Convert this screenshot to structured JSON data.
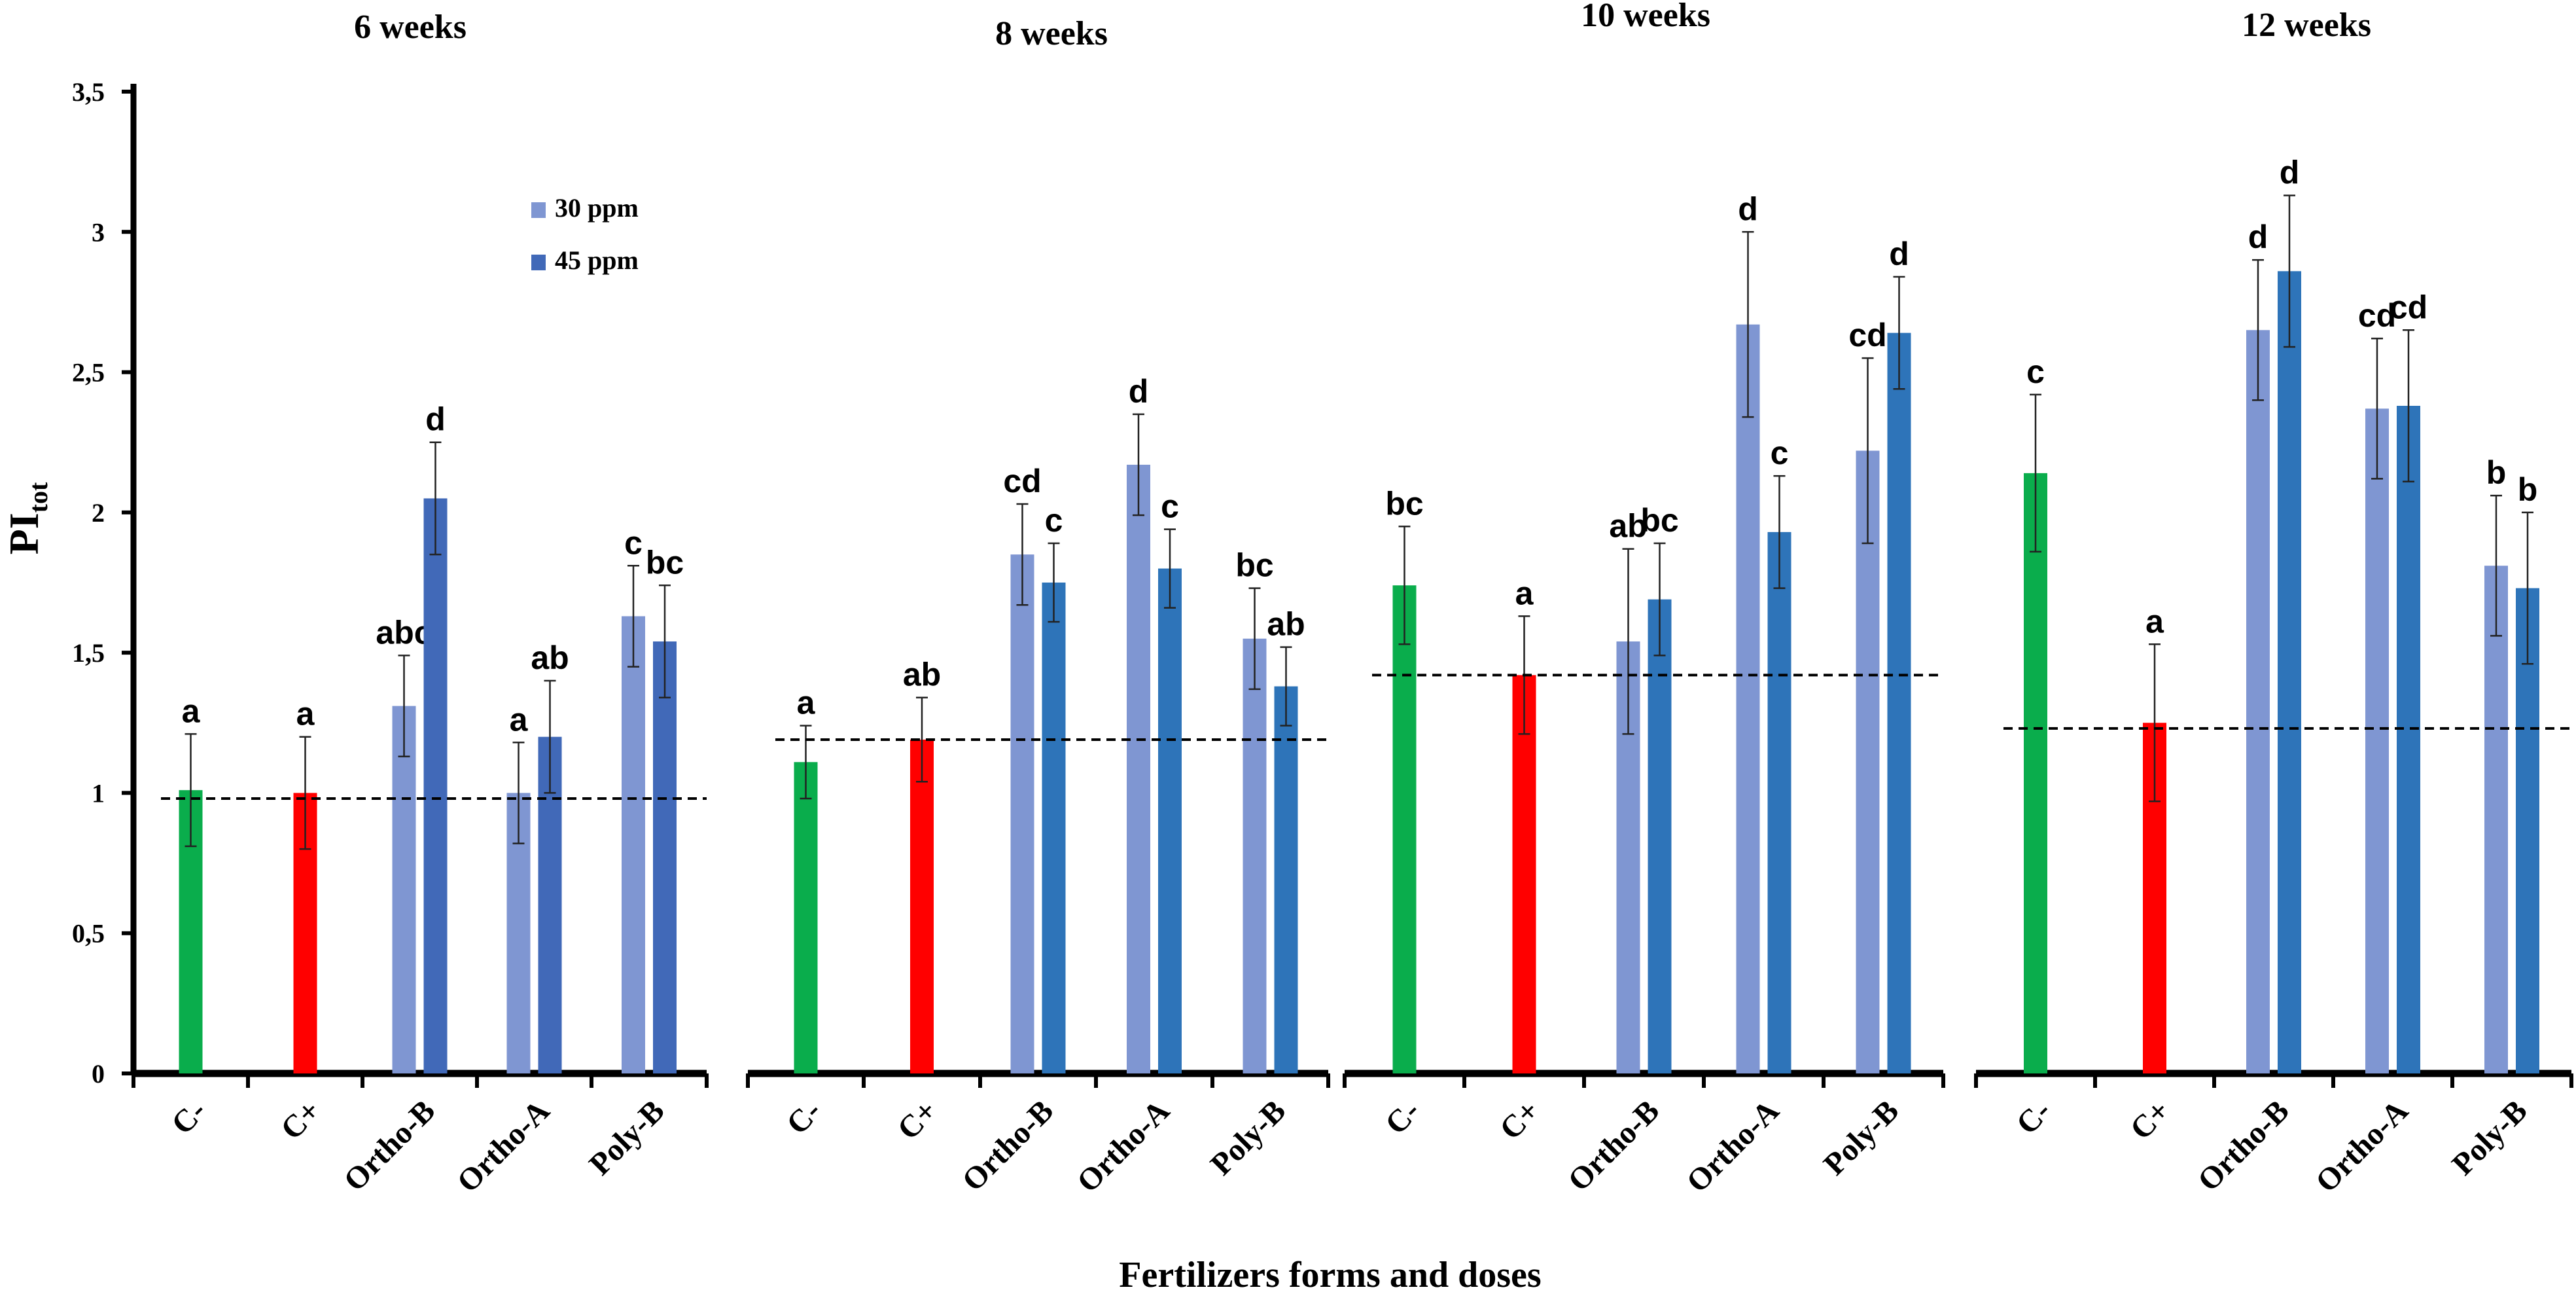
{
  "chart_data": {
    "type": "bar",
    "ylabel": "PI",
    "ylabel_subscript": "tot",
    "xlabel": "Fertilizers forms and doses",
    "ylim": [
      0,
      3.5
    ],
    "yticks": [
      {
        "value": 0,
        "label": "0"
      },
      {
        "value": 0.5,
        "label": "0,5"
      },
      {
        "value": 1,
        "label": "1"
      },
      {
        "value": 1.5,
        "label": "1,5"
      },
      {
        "value": 2,
        "label": "2"
      },
      {
        "value": 2.5,
        "label": "2,5"
      },
      {
        "value": 3,
        "label": "3"
      },
      {
        "value": 3.5,
        "label": "3,5"
      }
    ],
    "legend": {
      "placement": "upper-left of first panel",
      "items": [
        {
          "label": "30 ppm",
          "color": "#7f96d2"
        },
        {
          "label": "45 ppm",
          "color": "#4169b8"
        }
      ]
    },
    "colors": {
      "c_minus": "#0aad4c",
      "c_plus": "#ff0000",
      "ppm30": "#7f96d2",
      "ppm45_w6": "#4169b8",
      "ppm45": "#2e74b9"
    },
    "panels": [
      {
        "title": "6 weeks",
        "reference_line": 0.98,
        "groups": [
          {
            "label": "C-",
            "bars": [
              {
                "series": "control-negative",
                "value": 1.01,
                "error": 0.2,
                "sig": "a"
              }
            ]
          },
          {
            "label": "C+",
            "bars": [
              {
                "series": "control-positive",
                "value": 1.0,
                "error": 0.2,
                "sig": "a"
              }
            ]
          },
          {
            "label": "Ortho-B",
            "bars": [
              {
                "series": "30 ppm",
                "value": 1.31,
                "error": 0.18,
                "sig": "abc"
              },
              {
                "series": "45 ppm",
                "value": 2.05,
                "error": 0.2,
                "sig": "d"
              }
            ]
          },
          {
            "label": "Ortho-A",
            "bars": [
              {
                "series": "30 ppm",
                "value": 1.0,
                "error": 0.18,
                "sig": "a"
              },
              {
                "series": "45 ppm",
                "value": 1.2,
                "error": 0.2,
                "sig": "ab"
              }
            ]
          },
          {
            "label": "Poly-B",
            "bars": [
              {
                "series": "30 ppm",
                "value": 1.63,
                "error": 0.18,
                "sig": "c"
              },
              {
                "series": "45 ppm",
                "value": 1.54,
                "error": 0.2,
                "sig": "bc"
              }
            ]
          }
        ]
      },
      {
        "title": "8 weeks",
        "reference_line": 1.19,
        "groups": [
          {
            "label": "C-",
            "bars": [
              {
                "series": "control-negative",
                "value": 1.11,
                "error": 0.13,
                "sig": "a"
              }
            ]
          },
          {
            "label": "C+",
            "bars": [
              {
                "series": "control-positive",
                "value": 1.19,
                "error": 0.15,
                "sig": "ab"
              }
            ]
          },
          {
            "label": "Ortho-B",
            "bars": [
              {
                "series": "30 ppm",
                "value": 1.85,
                "error": 0.18,
                "sig": "cd"
              },
              {
                "series": "45 ppm",
                "value": 1.75,
                "error": 0.14,
                "sig": "c"
              }
            ]
          },
          {
            "label": "Ortho-A",
            "bars": [
              {
                "series": "30 ppm",
                "value": 2.17,
                "error": 0.18,
                "sig": "d"
              },
              {
                "series": "45 ppm",
                "value": 1.8,
                "error": 0.14,
                "sig": "c"
              }
            ]
          },
          {
            "label": "Poly-B",
            "bars": [
              {
                "series": "30 ppm",
                "value": 1.55,
                "error": 0.18,
                "sig": "bc"
              },
              {
                "series": "45 ppm",
                "value": 1.38,
                "error": 0.14,
                "sig": "ab"
              }
            ]
          }
        ]
      },
      {
        "title": "10 weeks",
        "reference_line": 1.42,
        "groups": [
          {
            "label": "C-",
            "bars": [
              {
                "series": "control-negative",
                "value": 1.74,
                "error": 0.21,
                "sig": "bc"
              }
            ]
          },
          {
            "label": "C+",
            "bars": [
              {
                "series": "control-positive",
                "value": 1.42,
                "error": 0.21,
                "sig": "a"
              }
            ]
          },
          {
            "label": "Ortho-B",
            "bars": [
              {
                "series": "30 ppm",
                "value": 1.54,
                "error": 0.33,
                "sig": "ab"
              },
              {
                "series": "45 ppm",
                "value": 1.69,
                "error": 0.2,
                "sig": "bc"
              }
            ]
          },
          {
            "label": "Ortho-A",
            "bars": [
              {
                "series": "30 ppm",
                "value": 2.67,
                "error": 0.33,
                "sig": "d"
              },
              {
                "series": "45 ppm",
                "value": 1.93,
                "error": 0.2,
                "sig": "c"
              }
            ]
          },
          {
            "label": "Poly-B",
            "bars": [
              {
                "series": "30 ppm",
                "value": 2.22,
                "error": 0.33,
                "sig": "cd"
              },
              {
                "series": "45 ppm",
                "value": 2.64,
                "error": 0.2,
                "sig": "d"
              }
            ]
          }
        ]
      },
      {
        "title": "12 weeks",
        "reference_line": 1.23,
        "groups": [
          {
            "label": "C-",
            "bars": [
              {
                "series": "control-negative",
                "value": 2.14,
                "error": 0.28,
                "sig": "c"
              }
            ]
          },
          {
            "label": "C+",
            "bars": [
              {
                "series": "control-positive",
                "value": 1.25,
                "error": 0.28,
                "sig": "a"
              }
            ]
          },
          {
            "label": "Ortho-B",
            "bars": [
              {
                "series": "30 ppm",
                "value": 2.65,
                "error": 0.25,
                "sig": "d"
              },
              {
                "series": "45 ppm",
                "value": 2.86,
                "error": 0.27,
                "sig": "d"
              }
            ]
          },
          {
            "label": "Ortho-A",
            "bars": [
              {
                "series": "30 ppm",
                "value": 2.37,
                "error": 0.25,
                "sig": "cd"
              },
              {
                "series": "45 ppm",
                "value": 2.38,
                "error": 0.27,
                "sig": "cd"
              }
            ]
          },
          {
            "label": "Poly-B",
            "bars": [
              {
                "series": "30 ppm",
                "value": 1.81,
                "error": 0.25,
                "sig": "b"
              },
              {
                "series": "45 ppm",
                "value": 1.73,
                "error": 0.27,
                "sig": "b"
              }
            ]
          }
        ]
      }
    ]
  }
}
